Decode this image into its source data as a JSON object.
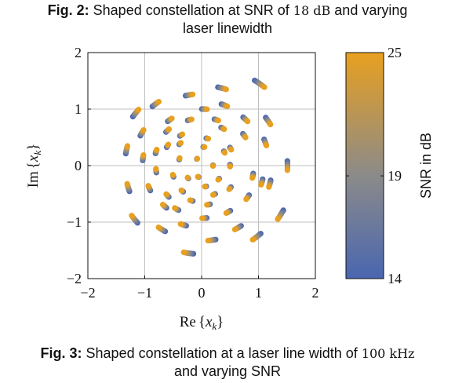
{
  "captions": {
    "fig2_prefix": "Fig. 2:",
    "fig2_text_a": "Shaped constellation at SNR of",
    "fig2_value": "18 dB",
    "fig2_text_b": "and varying",
    "fig2_line2": "laser linewidth",
    "fig3_prefix": "Fig. 3:",
    "fig3_text_a": "Shaped constellation at a laser line width of",
    "fig3_value": "100 kHz",
    "fig3_line2": "and varying SNR"
  },
  "colors": {
    "low": "#4a66b0",
    "mid": "#8a8a8a",
    "high": "#e8a020",
    "grid": "#bfbfbf",
    "axis": "#111111"
  },
  "chart_data": {
    "type": "scatter",
    "xlabel": "Re{x_k}",
    "ylabel": "Im{x_k}",
    "xlim": [
      -2,
      2
    ],
    "ylim": [
      -2,
      2
    ],
    "xticks": [
      "−2",
      "−1",
      "0",
      "1",
      "2"
    ],
    "yticks": [
      "−2",
      "−1",
      "0",
      "1",
      "2"
    ],
    "grid": true,
    "colorbar": {
      "label": "SNR in dB",
      "min": 14,
      "max": 25,
      "ticks": [
        "14",
        "19",
        "25"
      ]
    },
    "series": [
      {
        "points": [
          [
            -1.32,
            0.28
          ],
          [
            -1.29,
            -0.39
          ],
          [
            -1.18,
            -0.95
          ],
          [
            -1.16,
            0.93
          ],
          [
            -1.05,
            0.58
          ],
          [
            -1.03,
            0.14
          ],
          [
            -0.92,
            -0.4
          ],
          [
            -0.81,
            1.09
          ],
          [
            -0.8,
            0.25
          ],
          [
            -0.8,
            -0.09
          ],
          [
            -0.7,
            -1.13
          ],
          [
            -0.65,
            -0.72
          ],
          [
            -0.6,
            0.35
          ],
          [
            -0.6,
            0.62
          ],
          [
            -0.6,
            -0.53
          ],
          [
            -0.56,
            0.81
          ],
          [
            -0.5,
            -0.18
          ],
          [
            -0.44,
            -0.77
          ],
          [
            -0.39,
            0.12
          ],
          [
            -0.38,
            0.39
          ],
          [
            -0.36,
            0.54
          ],
          [
            -0.34,
            -0.45
          ],
          [
            -0.32,
            -1.05
          ],
          [
            -0.24,
            -0.22
          ],
          [
            -0.23,
            -1.55
          ],
          [
            -0.22,
            1.25
          ],
          [
            -0.21,
            0.81
          ],
          [
            -0.18,
            -0.62
          ],
          [
            -0.08,
            0.12
          ],
          [
            -0.06,
            -0.2
          ],
          [
            0.04,
            0.33
          ],
          [
            0.05,
            -0.93
          ],
          [
            0.05,
            1.0
          ],
          [
            0.07,
            -0.37
          ],
          [
            0.1,
            0.48
          ],
          [
            0.12,
            -0.69
          ],
          [
            0.18,
            -1.32
          ],
          [
            0.2,
            0.0
          ],
          [
            0.22,
            -0.51
          ],
          [
            0.26,
            0.81
          ],
          [
            0.3,
            -0.24
          ],
          [
            0.36,
            1.37
          ],
          [
            0.37,
            0.66
          ],
          [
            0.4,
            0.24
          ],
          [
            0.4,
            1.07
          ],
          [
            0.47,
            -0.82
          ],
          [
            0.5,
            -0.4
          ],
          [
            0.5,
            0.0
          ],
          [
            0.51,
            0.3
          ],
          [
            0.64,
            -1.1
          ],
          [
            0.75,
            0.53
          ],
          [
            0.77,
            0.82
          ],
          [
            0.81,
            -0.56
          ],
          [
            0.9,
            -0.18
          ],
          [
            0.97,
            -1.26
          ],
          [
            1.02,
            1.45
          ],
          [
            1.06,
            -0.29
          ],
          [
            1.12,
            0.41
          ],
          [
            1.17,
            0.79
          ],
          [
            1.2,
            -0.32
          ],
          [
            1.39,
            -0.87
          ],
          [
            1.51,
            0.0
          ]
        ]
      }
    ]
  }
}
